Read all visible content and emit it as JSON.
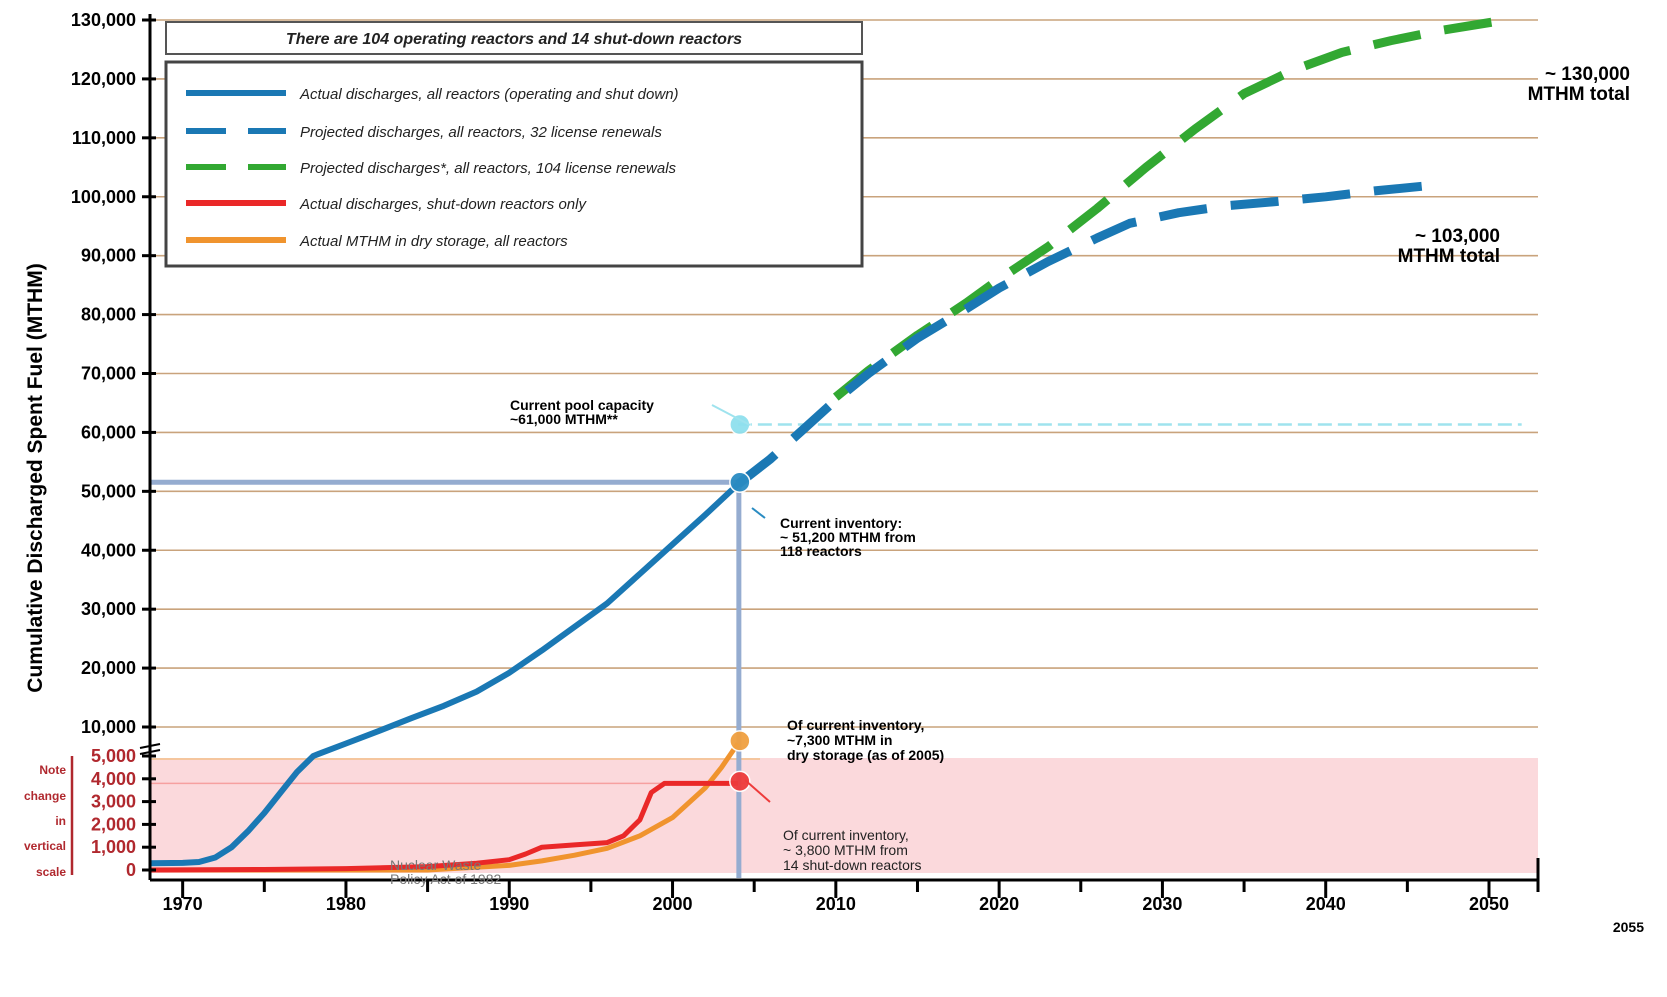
{
  "chart_data": {
    "type": "line",
    "ylabel": "Cumulative Discharged Spent Fuel (MTHM)",
    "xlim": [
      1968,
      2053
    ],
    "x_ticks": [
      1970,
      1980,
      1990,
      2000,
      2010,
      2020,
      2030,
      2040,
      2050
    ],
    "x_tick_labels": [
      "1970",
      "1980",
      "1990",
      "2000",
      "2010",
      "2020",
      "2030",
      "2040",
      "2050"
    ],
    "x_end_label": "2055",
    "y_upper_ticks": [
      "10,000",
      "20,000",
      "30,000",
      "40,000",
      "50,000",
      "60,000",
      "70,000",
      "80,000",
      "90,000",
      "100,000",
      "110,000",
      "120,000",
      "130,000"
    ],
    "y_lower_ticks": [
      "0",
      "1,000",
      "2,000",
      "3,000",
      "4,000",
      "5,000"
    ],
    "grid": true,
    "legend_position": "top-left",
    "legend_title": "There are 104 operating reactors and 14 shut-down reactors",
    "break_note": [
      "Note",
      "change",
      "in",
      "vertical",
      "scale"
    ],
    "series": [
      {
        "name": "Actual discharges, all reactors (operating and shut down)",
        "color": "#1a78b4",
        "style": "solid",
        "points": [
          [
            1968,
            300
          ],
          [
            1970,
            310
          ],
          [
            1971,
            350
          ],
          [
            1972,
            550
          ],
          [
            1973,
            1000
          ],
          [
            1974,
            1700
          ],
          [
            1975,
            2500
          ],
          [
            1976,
            3400
          ],
          [
            1977,
            4300
          ],
          [
            1978,
            5000
          ],
          [
            1978.3,
            5400
          ],
          [
            1980,
            7200
          ],
          [
            1982,
            9300
          ],
          [
            1984,
            11500
          ],
          [
            1986,
            13600
          ],
          [
            1988,
            16000
          ],
          [
            1990,
            19200
          ],
          [
            1992,
            23000
          ],
          [
            1994,
            27000
          ],
          [
            1996,
            31000
          ],
          [
            1998,
            36000
          ],
          [
            2000,
            41000
          ],
          [
            2002,
            46000
          ],
          [
            2004,
            51200
          ]
        ]
      },
      {
        "name": "Projected discharges, all reactors, 32 license renewals",
        "color": "#1a78b4",
        "style": "dashed",
        "points": [
          [
            2004,
            51200
          ],
          [
            2006,
            55500
          ],
          [
            2008,
            60500
          ],
          [
            2010,
            65500
          ],
          [
            2012,
            70000
          ],
          [
            2015,
            76000
          ],
          [
            2018,
            81000
          ],
          [
            2020,
            84500
          ],
          [
            2023,
            89000
          ],
          [
            2026,
            93000
          ],
          [
            2028,
            95500
          ],
          [
            2031,
            97300
          ],
          [
            2034,
            98500
          ],
          [
            2037,
            99200
          ],
          [
            2040,
            100000
          ],
          [
            2043,
            101000
          ],
          [
            2046,
            101800
          ]
        ]
      },
      {
        "name": "Projected discharges*, all reactors, 104 license renewals",
        "color": "#32a832",
        "style": "dashed",
        "points": [
          [
            2010,
            66000
          ],
          [
            2012,
            70500
          ],
          [
            2015,
            76500
          ],
          [
            2018,
            82000
          ],
          [
            2020,
            86000
          ],
          [
            2023,
            91500
          ],
          [
            2026,
            98000
          ],
          [
            2029,
            105000
          ],
          [
            2032,
            111500
          ],
          [
            2035,
            117500
          ],
          [
            2038,
            121500
          ],
          [
            2041,
            124500
          ],
          [
            2044,
            126500
          ],
          [
            2047,
            128200
          ],
          [
            2051,
            130000
          ]
        ]
      },
      {
        "name": "Actual discharges, shut-down reactors only",
        "color": "#ea2828",
        "style": "solid",
        "points": [
          [
            1968,
            0
          ],
          [
            1975,
            20
          ],
          [
            1980,
            60
          ],
          [
            1985,
            150
          ],
          [
            1988,
            300
          ],
          [
            1990,
            450
          ],
          [
            1991,
            700
          ],
          [
            1992,
            1000
          ],
          [
            1994,
            1100
          ],
          [
            1996,
            1200
          ],
          [
            1997,
            1500
          ],
          [
            1998,
            2200
          ],
          [
            1998.7,
            3400
          ],
          [
            1999.5,
            3800
          ],
          [
            2004,
            3800
          ]
        ]
      },
      {
        "name": "Actual MTHM in dry storage, all reactors",
        "color": "#f0942e",
        "style": "solid",
        "points": [
          [
            1968,
            0
          ],
          [
            1985,
            0
          ],
          [
            1990,
            200
          ],
          [
            1992,
            400
          ],
          [
            1994,
            650
          ],
          [
            1996,
            950
          ],
          [
            1998,
            1500
          ],
          [
            2000,
            2300
          ],
          [
            2002,
            3600
          ],
          [
            2003,
            4500
          ],
          [
            2004,
            7200
          ]
        ]
      }
    ],
    "reference_lines": [
      {
        "label": "Current pool capacity ~61,000 MTHM**",
        "y": 61000,
        "from_x": 2004,
        "to_x": 2052,
        "color": "#9fe3ee"
      },
      {
        "label": "Current inventory ~51,200 MTHM",
        "y": 51200,
        "from_x": 1968,
        "to_x": 2004,
        "color": "#95acd0"
      }
    ],
    "annotations": {
      "pool": [
        "Current pool capacity",
        "~61,000 MTHM**"
      ],
      "inventory": [
        "Current inventory:",
        "~ 51,200 MTHM from",
        "118 reactors"
      ],
      "dry": [
        "Of current inventory,",
        "~7,300 MTHM in",
        "dry storage (as of 2005)"
      ],
      "shutdown": [
        "Of current inventory,",
        "~ 3,800 MTHM from",
        "14 shut-down reactors"
      ],
      "nwpa": [
        "Nuclear Waste",
        "Policy Act of 1982"
      ],
      "total_130": [
        "~ 130,000",
        "MTHM total"
      ],
      "total_103": [
        "~ 103,000",
        "MTHM  total"
      ]
    },
    "markers": [
      {
        "x": 2004,
        "y": 61000,
        "color": "#8fe0ee"
      },
      {
        "x": 2004,
        "y": 51200,
        "color": "#2a8cc2"
      },
      {
        "x": 2004,
        "y": 7300,
        "color": "#f0a040"
      },
      {
        "x": 2004,
        "y": 3800,
        "color": "#ee3b3b"
      }
    ]
  }
}
